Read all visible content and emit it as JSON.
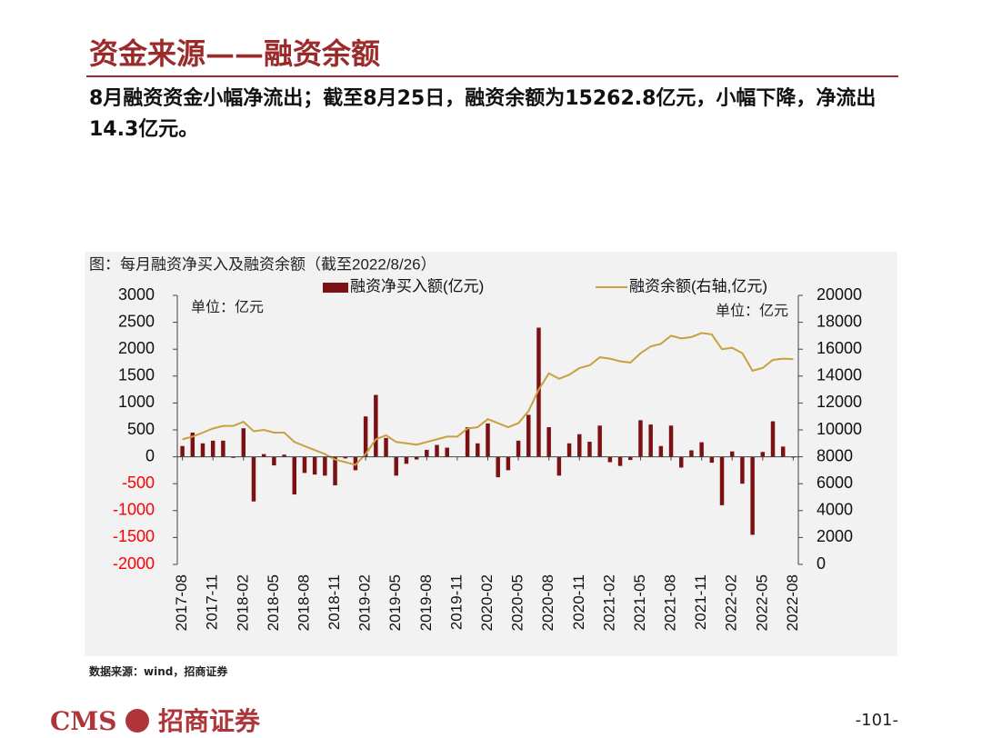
{
  "header": {
    "title": "资金来源——融资余额"
  },
  "body": {
    "text": "8月融资资金小幅净流出；截至8月25日，融资余额为15262.8亿元，小幅下降，净流出14.3亿元。"
  },
  "chart_data": {
    "type": "combo",
    "title": "图：每月融资净买入及融资余额（截至2022/8/26）",
    "y_unit": "单位：亿元",
    "y2_unit": "单位：亿元",
    "categories": [
      "2017-08",
      null,
      null,
      "2017-11",
      null,
      null,
      "2018-02",
      null,
      null,
      "2018-05",
      null,
      null,
      "2018-08",
      null,
      null,
      "2018-11",
      null,
      null,
      "2019-02",
      null,
      null,
      "2019-05",
      null,
      null,
      "2019-08",
      null,
      null,
      "2019-11",
      null,
      null,
      "2020-02",
      null,
      null,
      "2020-05",
      null,
      null,
      "2020-08",
      null,
      null,
      "2020-11",
      null,
      null,
      "2021-02",
      null,
      null,
      "2021-05",
      null,
      null,
      "2021-08",
      null,
      null,
      "2021-11",
      null,
      null,
      "2022-02",
      null,
      null,
      "2022-05",
      null,
      null,
      "2022-08"
    ],
    "series": [
      {
        "name": "融资净买入额(亿元)",
        "type": "bar",
        "color": "#7b1113",
        "values": [
          200,
          450,
          250,
          300,
          300,
          -20,
          530,
          -830,
          50,
          -160,
          40,
          -700,
          -300,
          -330,
          -350,
          -530,
          -30,
          -250,
          750,
          1150,
          350,
          -350,
          -130,
          -50,
          130,
          220,
          170,
          0,
          550,
          250,
          620,
          -380,
          -250,
          300,
          780,
          2400,
          550,
          -350,
          250,
          420,
          280,
          580,
          -100,
          -170,
          -60,
          680,
          600,
          200,
          580,
          -200,
          120,
          270,
          -110,
          -900,
          100,
          -500,
          -1450,
          90,
          660,
          190,
          -14
        ]
      },
      {
        "name": "融资余额(右轴,亿元)",
        "type": "line",
        "axis": "y2",
        "color": "#c9a040",
        "values": [
          9300,
          9500,
          9800,
          10100,
          10300,
          10300,
          10600,
          9900,
          10000,
          9800,
          9800,
          9100,
          8800,
          8500,
          8200,
          7800,
          7600,
          7400,
          8200,
          9300,
          9600,
          9100,
          9000,
          8900,
          9100,
          9300,
          9500,
          9500,
          10100,
          10200,
          10800,
          10500,
          10200,
          10500,
          11400,
          13000,
          14200,
          13800,
          14100,
          14600,
          14800,
          15400,
          15300,
          15100,
          15000,
          15700,
          16200,
          16400,
          17000,
          16800,
          16900,
          17200,
          17100,
          16000,
          16100,
          15700,
          14400,
          14600,
          15200,
          15300,
          15263
        ]
      }
    ],
    "ylim": [
      -2000,
      3000
    ],
    "yticks": [
      -2000,
      -1500,
      -1000,
      -500,
      0,
      500,
      1000,
      1500,
      2000,
      2500,
      3000
    ],
    "y2lim": [
      0,
      20000
    ],
    "y2ticks": [
      0,
      2000,
      4000,
      6000,
      8000,
      10000,
      12000,
      14000,
      16000,
      18000,
      20000
    ],
    "negative_label_color": "#ff0000"
  },
  "source": "数据来源：wind，招商证券",
  "footer": {
    "logo": "CMS",
    "company": "招商证券",
    "page": "-101-"
  }
}
